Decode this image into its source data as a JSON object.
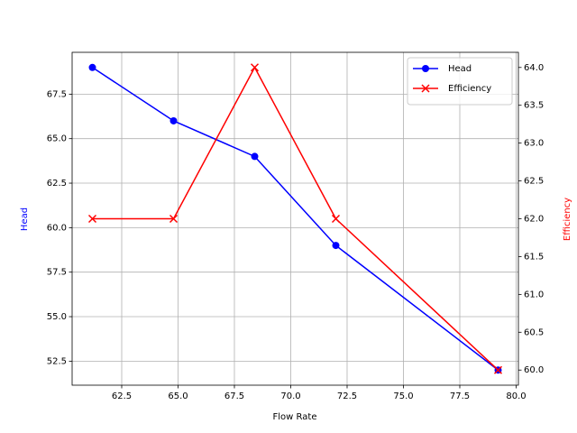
{
  "chart_data": {
    "type": "line",
    "xlabel": "Flow Rate",
    "ylabel": "Head",
    "y2label": "Efficiency",
    "x": [
      61.2,
      64.8,
      68.4,
      72.0,
      79.2
    ],
    "series": [
      {
        "name": "Head",
        "color": "#0000ff",
        "marker": "o",
        "axis": "y",
        "values": [
          69,
          66,
          64,
          59,
          52
        ]
      },
      {
        "name": "Efficiency",
        "color": "#ff0000",
        "marker": "x",
        "axis": "y2",
        "values": [
          62,
          62,
          64,
          62,
          60
        ]
      }
    ],
    "xlim": [
      60.3,
      80.1
    ],
    "xticks": [
      62.5,
      {
        "value": 65,
        "label": "65.0"
      },
      67.5,
      {
        "value": 70,
        "label": "70.0"
      },
      72.5,
      {
        "value": 75,
        "label": "75.0"
      },
      77.5,
      {
        "value": 80,
        "label": "80.0"
      }
    ],
    "ylim": [
      51.15,
      69.85
    ],
    "yticks": [
      52.5,
      {
        "value": 55,
        "label": "55.0"
      },
      57.5,
      {
        "value": 60,
        "label": "60.0"
      },
      62.5,
      {
        "value": 65,
        "label": "65.0"
      },
      67.5
    ],
    "y2lim": [
      59.8,
      64.2
    ],
    "y2ticks": [
      {
        "value": 60,
        "label": "60.0"
      },
      60.5,
      {
        "value": 61,
        "label": "61.0"
      },
      61.5,
      {
        "value": 62,
        "label": "62.0"
      },
      62.5,
      {
        "value": 63,
        "label": "63.0"
      },
      63.5,
      {
        "value": 64,
        "label": "64.0"
      }
    ],
    "grid": true,
    "legend": "upper right"
  }
}
